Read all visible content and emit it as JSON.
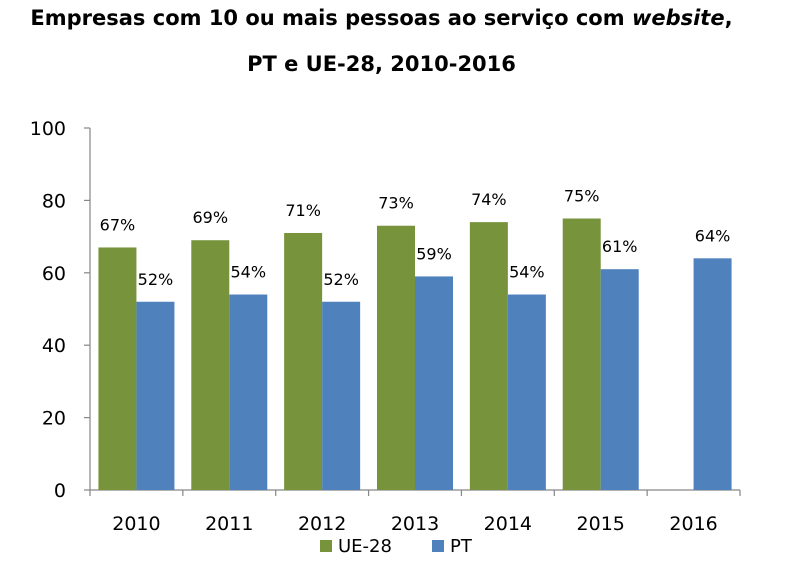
{
  "chart_data": {
    "type": "bar",
    "title": {
      "line1_prefix": "Empresas com 10 ou mais pessoas ao serviço com ",
      "line1_emphasis": "website",
      "line1_suffix": ",",
      "line2": "PT e UE-28, 2010-2016"
    },
    "xlabel": "",
    "ylabel": "",
    "categories": [
      "2010",
      "2011",
      "2012",
      "2013",
      "2014",
      "2015",
      "2016"
    ],
    "ylim": [
      0,
      100
    ],
    "yticks": [
      0,
      20,
      40,
      60,
      80,
      100
    ],
    "grid": false,
    "legend_position": "bottom",
    "series": [
      {
        "name": "UE-28",
        "color": "#77933c",
        "values": [
          67,
          69,
          71,
          73,
          74,
          75,
          null
        ],
        "labels": [
          "67%",
          "69%",
          "71%",
          "73%",
          "74%",
          "75%",
          ""
        ]
      },
      {
        "name": "PT",
        "color": "#4f81bd",
        "values": [
          52,
          54,
          52,
          59,
          54,
          61,
          64
        ],
        "labels": [
          "52%",
          "54%",
          "52%",
          "59%",
          "54%",
          "61%",
          "64%"
        ]
      }
    ]
  }
}
